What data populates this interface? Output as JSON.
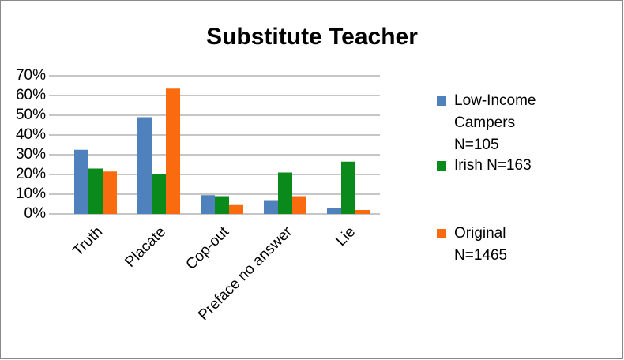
{
  "chart_data": {
    "type": "bar",
    "title": "Substitute Teacher",
    "categories": [
      "Truth",
      "Placate",
      "Cop-out",
      "Preface no answer",
      "Lie"
    ],
    "series": [
      {
        "name": "Low-Income Campers N=105",
        "color": "#4f81bd",
        "values": [
          32.5,
          49,
          9.5,
          7,
          3
        ]
      },
      {
        "name": "Irish N=163",
        "color": "#0a8a1a",
        "values": [
          23,
          20,
          9,
          21,
          26.5
        ]
      },
      {
        "name": "Original N=1465",
        "color": "#f96b0e",
        "values": [
          21.5,
          63.5,
          4.5,
          9,
          2
        ]
      }
    ],
    "ylim": [
      0,
      70
    ],
    "yticks": [
      {
        "value": 0,
        "label": "0%"
      },
      {
        "value": 10,
        "label": "10%"
      },
      {
        "value": 20,
        "label": "20%"
      },
      {
        "value": 30,
        "label": "30%"
      },
      {
        "value": 40,
        "label": "40%"
      },
      {
        "value": 50,
        "label": "50%"
      },
      {
        "value": 60,
        "label": "60%"
      },
      {
        "value": 70,
        "label": "70%"
      }
    ],
    "grid": true,
    "legend": "right"
  }
}
